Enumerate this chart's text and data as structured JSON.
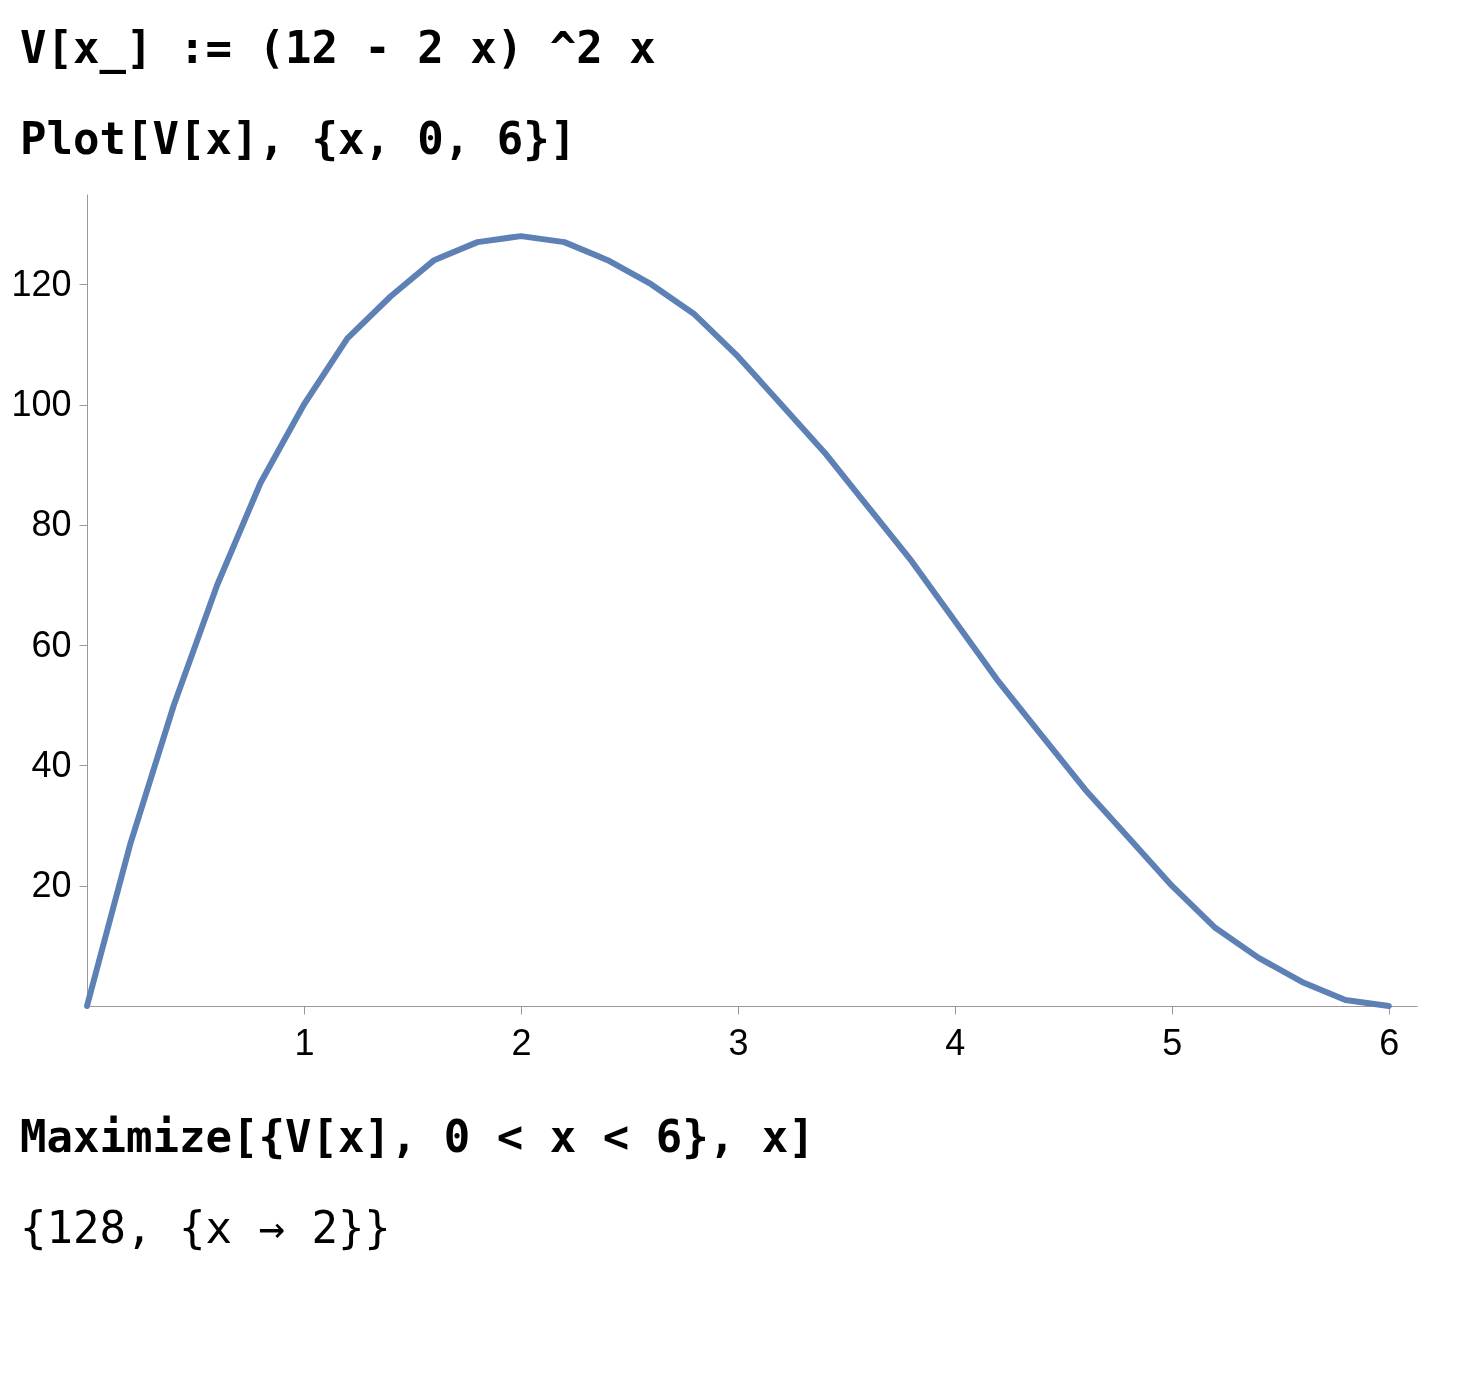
{
  "chart_data": {
    "type": "line",
    "title": "V[x_] := (12 - 2 x) ^2 x",
    "subtitle": "Plot[V[x], {x, 0, 6}]",
    "annotations": [
      "Maximize[{V[x], 0 < x < 6}, x]",
      "{128, {x → 2}}"
    ],
    "x": [
      0,
      0.2,
      0.4,
      0.6,
      0.8,
      1,
      1.2,
      1.4,
      1.6,
      1.8,
      2,
      2.2,
      2.4,
      2.6,
      2.8,
      3,
      3.2,
      3.4,
      3.6,
      3.8,
      4,
      4.2,
      4.4,
      4.6,
      4.8,
      5,
      5.2,
      5.4,
      5.6,
      5.8,
      6
    ],
    "series": [
      {
        "color": "#5e81b5",
        "values": [
          0,
          27,
          50,
          70,
          87,
          100,
          111,
          118,
          124,
          127,
          128,
          127,
          124,
          120,
          115,
          108,
          100,
          92,
          83,
          74,
          64,
          54,
          45,
          36,
          28,
          20,
          13,
          8,
          4,
          1,
          0
        ]
      }
    ],
    "xlim": [
      0,
      6.13
    ],
    "ylim": [
      0,
      135
    ],
    "xticks": [
      1,
      2,
      3,
      4,
      5,
      6
    ],
    "yticks": [
      20,
      40,
      60,
      80,
      100,
      120
    ],
    "grid": false,
    "legend": false,
    "marker": "none",
    "line_style": "solid"
  }
}
